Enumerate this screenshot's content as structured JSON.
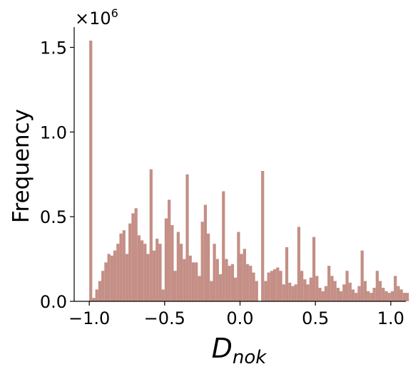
{
  "chart_data": {
    "type": "bar",
    "title": "",
    "xlabel": "D",
    "xlabel_subscript": "nok",
    "ylabel": "Frequency",
    "y_offset_base": "×10",
    "y_offset_exp": "6",
    "xlim": [
      -1.1,
      1.1
    ],
    "ylim": [
      0,
      1.62
    ],
    "xticks": [
      -1.0,
      -0.5,
      0.0,
      0.5,
      1.0
    ],
    "xtick_labels": [
      "−1.0",
      "−0.5",
      "0.0",
      "0.5",
      "1.0"
    ],
    "yticks": [
      0.0,
      0.5,
      1.0,
      1.5
    ],
    "ytick_labels": [
      "0.0",
      "0.5",
      "1.0",
      "1.5"
    ],
    "bar_color": "#c48f86",
    "grid": false,
    "bins_start": -1.0,
    "bin_width": 0.02,
    "values": [
      1.54,
      0.02,
      0.07,
      0.12,
      0.18,
      0.23,
      0.28,
      0.27,
      0.3,
      0.34,
      0.4,
      0.42,
      0.28,
      0.46,
      0.52,
      0.55,
      0.39,
      0.36,
      0.34,
      0.28,
      0.78,
      0.3,
      0.37,
      0.34,
      0.07,
      0.49,
      0.6,
      0.45,
      0.18,
      0.41,
      0.34,
      0.25,
      0.75,
      0.27,
      0.23,
      0.23,
      0.15,
      0.47,
      0.57,
      0.4,
      0.12,
      0.34,
      0.25,
      0.16,
      0.65,
      0.25,
      0.21,
      0.22,
      0.14,
      0.41,
      0.28,
      0.31,
      0.22,
      0.21,
      0.17,
      0.12,
      0.0,
      0.77,
      0.12,
      0.17,
      0.18,
      0.19,
      0.2,
      0.18,
      0.1,
      0.32,
      0.11,
      0.09,
      0.1,
      0.44,
      0.18,
      0.13,
      0.1,
      0.14,
      0.38,
      0.15,
      0.08,
      0.06,
      0.09,
      0.21,
      0.15,
      0.12,
      0.08,
      0.06,
      0.1,
      0.18,
      0.11,
      0.07,
      0.05,
      0.09,
      0.3,
      0.12,
      0.06,
      0.05,
      0.08,
      0.18,
      0.12,
      0.08,
      0.06,
      0.05,
      0.06,
      0.15,
      0.09,
      0.07,
      0.05,
      0.05,
      0.04,
      0.03,
      0.04,
      0.03,
      0.02,
      0.01,
      0.0,
      0.01,
      0.0,
      0.0,
      0.0,
      0.0,
      0.0,
      0.0,
      0.0,
      0.0,
      0.0,
      0.0,
      0.0,
      0.0,
      0.0,
      0.0,
      0.0,
      0.0,
      0.0,
      0.0,
      0.0,
      0.0,
      0.0,
      0.0,
      0.0,
      0.0,
      0.0,
      0.0,
      0.0,
      0.0,
      0.0,
      0.0,
      0.0,
      0.0,
      0.0,
      0.0,
      0.0,
      0.0
    ]
  }
}
